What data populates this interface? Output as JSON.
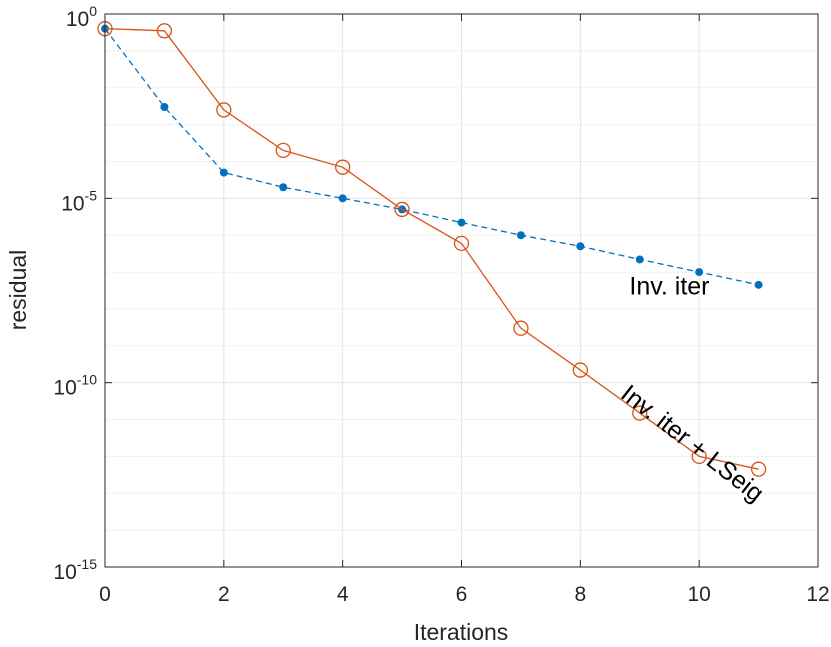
{
  "chart_data": {
    "type": "line",
    "title": "",
    "xlabel": "Iterations",
    "ylabel": "residual",
    "y_scale": "log",
    "xlim": [
      0,
      12
    ],
    "ylim": [
      1e-15,
      1
    ],
    "x_ticks": [
      "0",
      "2",
      "4",
      "6",
      "8",
      "10",
      "12"
    ],
    "y_ticks": [
      {
        "base": "10",
        "exp": "-15",
        "value": 1e-15
      },
      {
        "base": "10",
        "exp": "-10",
        "value": 1e-10
      },
      {
        "base": "10",
        "exp": "-5",
        "value": 1e-05
      },
      {
        "base": "10",
        "exp": "0",
        "value": 1
      }
    ],
    "grid": true,
    "minor_grid": true,
    "series": [
      {
        "label": "Inv. iter",
        "color": "#0072BD",
        "style": "dashed",
        "marker": "filled-dot",
        "x": [
          0,
          1,
          2,
          3,
          4,
          5,
          6,
          7,
          8,
          9,
          10,
          11
        ],
        "y": [
          0.4,
          0.003,
          5e-05,
          2e-05,
          1e-05,
          5e-06,
          2.2e-06,
          1e-06,
          5e-07,
          2.2e-07,
          1e-07,
          4.5e-08
        ]
      },
      {
        "label": "Inv. iter + LSeig",
        "color": "#D95319",
        "style": "solid",
        "marker": "open-circle",
        "x": [
          0,
          1,
          2,
          3,
          4,
          5,
          6,
          7,
          8,
          9,
          10,
          11
        ],
        "y": [
          0.4,
          0.35,
          0.0025,
          0.0002,
          7e-05,
          5e-06,
          6e-07,
          3e-09,
          2.2e-10,
          1.5e-11,
          1e-12,
          4.5e-13
        ]
      }
    ],
    "annotations": [
      {
        "text": "Inv. iter",
        "x": 9.5,
        "y": 2.5e-08
      },
      {
        "text": "Inv. iter + LSeig",
        "x": 9.8,
        "y": 1.5e-12,
        "rotation": 38
      }
    ]
  }
}
